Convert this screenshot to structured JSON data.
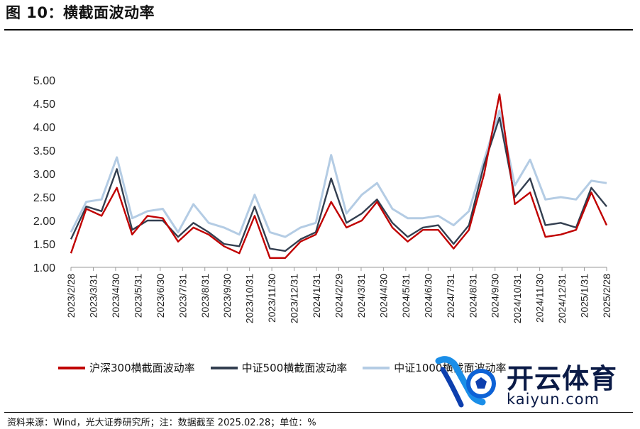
{
  "title": "图 10：横截面波动率",
  "source": "资料来源：Wind，光大证券研究所；注：数据截至 2025.02.28；单位：%",
  "logo": {
    "name_cn": "开云体育",
    "name_en": "kaiyun.com"
  },
  "colors": {
    "red": "#c00000",
    "navy": "#333f50",
    "lightblue": "#b4cce4"
  },
  "chart_data": {
    "type": "line",
    "ylim": [
      1.0,
      5.0
    ],
    "yticks": [
      "5.00",
      "4.50",
      "4.00",
      "3.50",
      "3.00",
      "2.50",
      "2.00",
      "1.50",
      "1.00"
    ],
    "xticks": [
      "2023/2/28",
      "2023/3/31",
      "2023/4/30",
      "2023/5/31",
      "2023/6/30",
      "2023/7/31",
      "2023/8/31",
      "2023/9/30",
      "2023/10/31",
      "2023/11/30",
      "2023/12/31",
      "2024/1/31",
      "2024/2/29",
      "2024/3/31",
      "2024/4/30",
      "2024/5/31",
      "2024/6/30",
      "2024/7/31",
      "2024/8/31",
      "2024/9/30",
      "2024/10/31",
      "2024/11/30",
      "2024/12/31",
      "2025/1/31",
      "2025/2/28"
    ],
    "series": [
      {
        "name": "沪深300横截面波动率",
        "color": "#c00000",
        "values": [
          1.3,
          2.25,
          2.1,
          2.7,
          1.7,
          2.1,
          2.05,
          1.55,
          1.85,
          1.7,
          1.45,
          1.3,
          2.1,
          1.2,
          1.2,
          1.55,
          1.7,
          2.4,
          1.85,
          2.0,
          2.4,
          1.85,
          1.55,
          1.8,
          1.8,
          1.4,
          1.8,
          3.0,
          4.7,
          2.35,
          2.6,
          1.65,
          1.7,
          1.8,
          2.6,
          1.9
        ]
      },
      {
        "name": "中证500横截面波动率",
        "color": "#333f50",
        "values": [
          1.6,
          2.3,
          2.2,
          3.1,
          1.8,
          2.0,
          2.0,
          1.65,
          1.95,
          1.75,
          1.5,
          1.45,
          2.3,
          1.4,
          1.35,
          1.6,
          1.75,
          2.9,
          1.95,
          2.15,
          2.45,
          1.95,
          1.65,
          1.85,
          1.9,
          1.5,
          1.9,
          3.2,
          4.2,
          2.5,
          2.9,
          1.9,
          1.95,
          1.85,
          2.7,
          2.3
        ]
      },
      {
        "name": "中证1000横截面波动率",
        "color": "#b4cce4",
        "values": [
          1.75,
          2.4,
          2.45,
          3.35,
          2.05,
          2.2,
          2.25,
          1.75,
          2.35,
          1.95,
          1.85,
          1.7,
          2.55,
          1.75,
          1.65,
          1.85,
          1.95,
          3.4,
          2.15,
          2.55,
          2.8,
          2.25,
          2.05,
          2.05,
          2.1,
          1.9,
          2.2,
          3.3,
          4.35,
          2.75,
          3.3,
          2.45,
          2.5,
          2.45,
          2.85,
          2.8
        ]
      }
    ]
  }
}
